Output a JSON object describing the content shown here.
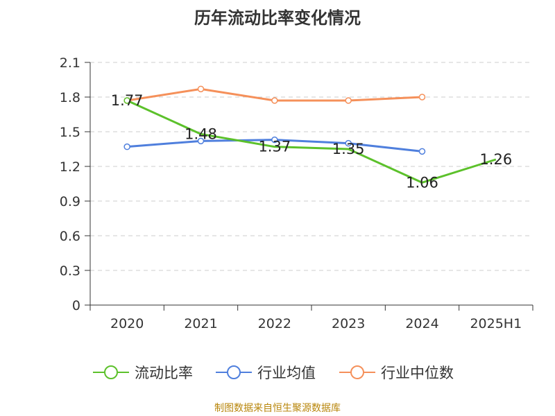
{
  "chart_data": {
    "type": "line",
    "title": "历年流动比率变化情况",
    "categories": [
      "2020",
      "2021",
      "2022",
      "2023",
      "2024",
      "2025H1"
    ],
    "ylim": [
      0,
      2.1
    ],
    "yticks": [
      "0",
      "0.3",
      "0.6",
      "0.9",
      "1.2",
      "1.5",
      "1.8",
      "2.1"
    ],
    "ytick_values": [
      0,
      0.3,
      0.6,
      0.9,
      1.2,
      1.5,
      1.8,
      2.1
    ],
    "grid": true,
    "legend_position": "bottom",
    "series": [
      {
        "name": "流动比率",
        "color": "#5cc12b",
        "values": [
          1.77,
          1.48,
          1.37,
          1.35,
          1.06,
          1.26
        ],
        "labels": [
          "1.77",
          "1.48",
          "1.37",
          "1.35",
          "1.06",
          "1.26"
        ],
        "show_labels": true,
        "markers": [
          true,
          false,
          false,
          false,
          false,
          false
        ]
      },
      {
        "name": "行业均值",
        "color": "#4f7fdd",
        "values": [
          1.37,
          1.42,
          1.43,
          1.4,
          1.33,
          null
        ],
        "show_labels": false,
        "markers": [
          true,
          true,
          true,
          true,
          true,
          false
        ]
      },
      {
        "name": "行业中位数",
        "color": "#f5905a",
        "values": [
          1.77,
          1.87,
          1.77,
          1.77,
          1.8,
          null
        ],
        "show_labels": false,
        "markers": [
          true,
          true,
          true,
          true,
          true,
          false
        ]
      }
    ]
  },
  "source": "制图数据来自恒生聚源数据库"
}
